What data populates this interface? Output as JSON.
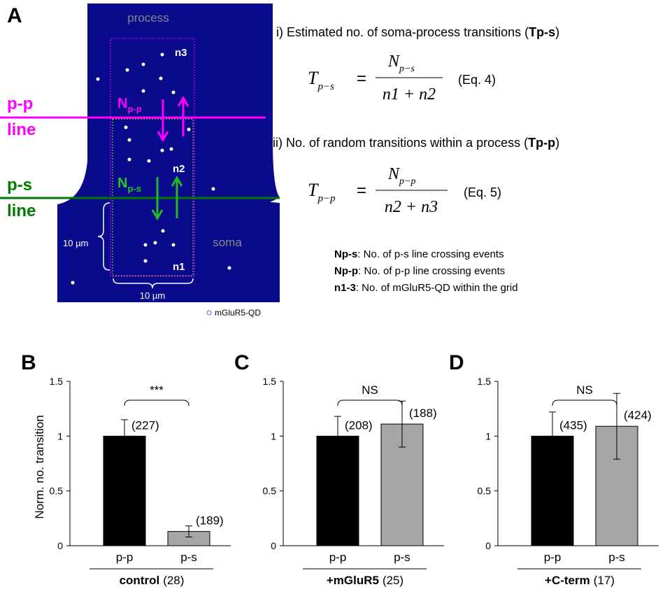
{
  "panel_a": {
    "label": "A",
    "process": "process",
    "soma": "soma",
    "n1": "n1",
    "n2": "n2",
    "n3": "n3",
    "npp": {
      "main": "N",
      "sub": "p-p"
    },
    "nps": {
      "main": "N",
      "sub": "p-s"
    },
    "pp_line": [
      "p-p",
      "line"
    ],
    "ps_line": [
      "p-s",
      "line"
    ],
    "scale_v": "10 µm",
    "scale_h": "10 µm",
    "legend": "mGluR5-QD",
    "eq1": {
      "heading": "i) Estimated no. of soma-process transitions (",
      "heading_bold": "Tp-s",
      "heading_end": ")",
      "lhs": "T",
      "lhs_sub": "p−s",
      "num": "N",
      "num_sub": "p−s",
      "den": "n1 + n2",
      "tag": "(Eq. 4)"
    },
    "eq2": {
      "heading": "ii) No. of random transitions within a process (",
      "heading_bold": "Tp-p",
      "heading_end": ")",
      "lhs": "T",
      "lhs_sub": "p−p",
      "num": "N",
      "num_sub": "p−p",
      "den": "n2 + n3",
      "tag": "(Eq. 5)"
    },
    "definitions": [
      {
        "term": "Np-s",
        "text": ": No. of p-s line crossing events"
      },
      {
        "term": "Np-p",
        "text": ": No. of p-p line crossing events"
      },
      {
        "term": "n1-3",
        "text": ": No. of mGluR5-QD within the grid"
      }
    ]
  },
  "chart_data": [
    {
      "type": "bar",
      "panel": "B",
      "ylabel": "Norm. no. transition",
      "categories": [
        "p-p",
        "p-s"
      ],
      "values": [
        1,
        0.13
      ],
      "errors": [
        0.15,
        0.05
      ],
      "colors": [
        "#000000",
        "#a6a6a6"
      ],
      "annotations": [
        "(227)",
        "(189)"
      ],
      "significance": "***",
      "group_label": "control",
      "group_n": "(28)",
      "ylim": [
        0,
        1.5
      ],
      "yticks": [
        0,
        0.5,
        1,
        1.5
      ]
    },
    {
      "type": "bar",
      "panel": "C",
      "categories": [
        "p-p",
        "p-s"
      ],
      "values": [
        1,
        1.11
      ],
      "errors": [
        0.18,
        0.21
      ],
      "colors": [
        "#000000",
        "#a6a6a6"
      ],
      "annotations": [
        "(208)",
        "(188)"
      ],
      "significance": "NS",
      "group_label": "+mGluR5",
      "group_n": "(25)",
      "ylim": [
        0,
        1.5
      ],
      "yticks": [
        0,
        0.5,
        1,
        1.5
      ]
    },
    {
      "type": "bar",
      "panel": "D",
      "categories": [
        "p-p",
        "p-s"
      ],
      "values": [
        1,
        1.09
      ],
      "errors": [
        0.22,
        0.3
      ],
      "colors": [
        "#000000",
        "#a6a6a6"
      ],
      "annotations": [
        "(435)",
        "(424)"
      ],
      "significance": "NS",
      "group_label": "+C-term",
      "group_n": "(17)",
      "ylim": [
        0,
        1.5
      ],
      "yticks": [
        0,
        0.5,
        1,
        1.5
      ]
    }
  ]
}
